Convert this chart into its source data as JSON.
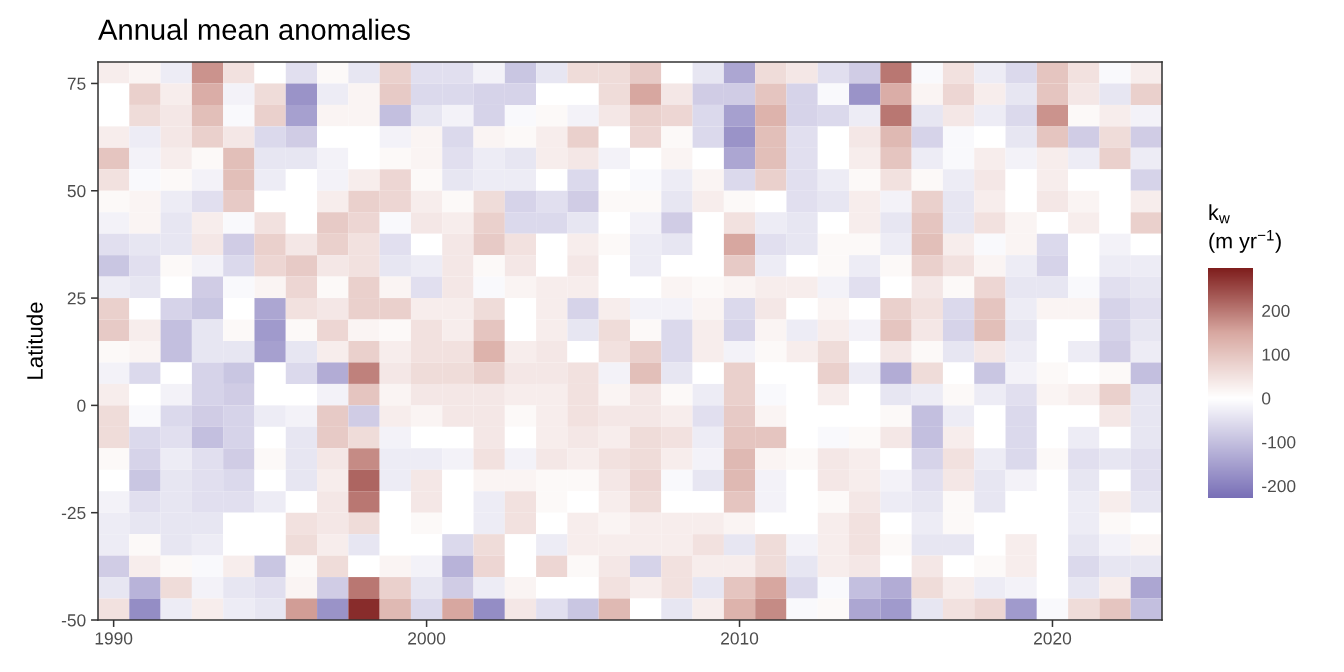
{
  "chart_data": {
    "type": "heatmap",
    "title": "Annual mean anomalies",
    "ylabel": "Latitude",
    "clabel": "k$_{w}$\n(m yr$^{−1}$)",
    "x": [
      1990,
      1991,
      1992,
      1993,
      1994,
      1995,
      1996,
      1997,
      1998,
      1999,
      2000,
      2001,
      2002,
      2003,
      2004,
      2005,
      2006,
      2007,
      2008,
      2009,
      2010,
      2011,
      2012,
      2013,
      2014,
      2015,
      2016,
      2017,
      2018,
      2019,
      2020,
      2021,
      2022,
      2023
    ],
    "cells": [
      [
        30,
        20,
        -30,
        170,
        50,
        0,
        -50,
        10,
        -40,
        80,
        -50,
        -50,
        -20,
        -90,
        -40,
        60,
        60,
        90,
        0,
        -40,
        -140,
        60,
        40,
        -50,
        -80,
        200,
        -10,
        50,
        -30,
        -60,
        100,
        50,
        -10,
        30
      ],
      [
        0,
        80,
        30,
        140,
        -20,
        60,
        -170,
        -30,
        20,
        90,
        -60,
        -60,
        -70,
        -70,
        0,
        0,
        60,
        150,
        40,
        -80,
        -80,
        100,
        -70,
        -10,
        -170,
        140,
        20,
        70,
        30,
        -40,
        100,
        40,
        -40,
        80
      ],
      [
        0,
        60,
        40,
        110,
        -10,
        80,
        -150,
        20,
        20,
        -100,
        -40,
        -20,
        -70,
        -10,
        10,
        -20,
        40,
        80,
        70,
        -60,
        -150,
        130,
        -70,
        -60,
        -30,
        200,
        -40,
        40,
        -30,
        -60,
        170,
        10,
        30,
        -20
      ],
      [
        30,
        -30,
        40,
        80,
        40,
        -60,
        -80,
        0,
        0,
        -20,
        20,
        -60,
        20,
        10,
        30,
        80,
        0,
        70,
        10,
        -60,
        -170,
        110,
        -50,
        0,
        40,
        120,
        -70,
        -10,
        0,
        -40,
        100,
        -80,
        60,
        -80
      ],
      [
        100,
        -20,
        30,
        10,
        110,
        -40,
        -40,
        -20,
        0,
        10,
        20,
        -50,
        -30,
        -40,
        30,
        40,
        -20,
        0,
        20,
        0,
        -140,
        110,
        -50,
        0,
        30,
        100,
        -30,
        -10,
        30,
        -20,
        30,
        -30,
        80,
        -30
      ],
      [
        50,
        -10,
        10,
        -20,
        110,
        -30,
        0,
        -20,
        30,
        70,
        10,
        -40,
        -30,
        -30,
        0,
        -60,
        0,
        -10,
        -30,
        20,
        -60,
        80,
        -50,
        -30,
        10,
        50,
        10,
        -30,
        40,
        0,
        30,
        0,
        0,
        -70
      ],
      [
        10,
        20,
        -30,
        -50,
        90,
        0,
        0,
        30,
        80,
        70,
        30,
        10,
        60,
        -70,
        -50,
        -80,
        10,
        10,
        -40,
        30,
        10,
        0,
        -50,
        -40,
        30,
        -20,
        80,
        -40,
        30,
        0,
        40,
        20,
        0,
        30
      ],
      [
        -20,
        20,
        -40,
        30,
        -10,
        50,
        0,
        90,
        70,
        -10,
        40,
        30,
        80,
        -60,
        -60,
        -40,
        0,
        -20,
        -80,
        0,
        50,
        -30,
        -40,
        0,
        30,
        -40,
        100,
        -40,
        50,
        20,
        0,
        30,
        0,
        80
      ],
      [
        -50,
        -40,
        -40,
        40,
        -80,
        80,
        40,
        80,
        50,
        -50,
        0,
        40,
        90,
        50,
        0,
        30,
        10,
        -30,
        -40,
        0,
        150,
        -50,
        -40,
        10,
        10,
        -30,
        110,
        30,
        -10,
        20,
        -60,
        0,
        -20,
        0
      ],
      [
        -90,
        -50,
        10,
        -20,
        -60,
        70,
        90,
        40,
        50,
        -40,
        -30,
        40,
        10,
        40,
        0,
        40,
        0,
        -30,
        0,
        0,
        90,
        -30,
        0,
        10,
        -30,
        10,
        80,
        50,
        20,
        -30,
        -70,
        0,
        -30,
        -30
      ],
      [
        -30,
        -40,
        0,
        -80,
        -10,
        20,
        70,
        10,
        80,
        20,
        -50,
        40,
        -10,
        20,
        30,
        30,
        0,
        0,
        20,
        10,
        20,
        30,
        30,
        -20,
        -50,
        0,
        40,
        10,
        70,
        -40,
        -40,
        -10,
        -50,
        -40
      ],
      [
        80,
        0,
        -70,
        -90,
        0,
        -140,
        50,
        40,
        80,
        80,
        30,
        30,
        60,
        0,
        30,
        -70,
        30,
        -20,
        -20,
        20,
        -60,
        40,
        0,
        20,
        0,
        80,
        50,
        -60,
        100,
        -30,
        20,
        20,
        -70,
        -50
      ],
      [
        90,
        30,
        -100,
        -40,
        10,
        -160,
        10,
        70,
        20,
        10,
        50,
        30,
        100,
        0,
        30,
        -40,
        60,
        10,
        -60,
        30,
        -70,
        20,
        -30,
        30,
        -20,
        100,
        40,
        -70,
        110,
        -40,
        0,
        0,
        -70,
        -40
      ],
      [
        10,
        20,
        -100,
        -40,
        -40,
        -150,
        -40,
        30,
        80,
        30,
        50,
        50,
        130,
        30,
        40,
        0,
        50,
        80,
        -60,
        30,
        -20,
        10,
        30,
        60,
        0,
        40,
        10,
        -40,
        40,
        -30,
        0,
        -30,
        -80,
        -30
      ],
      [
        -20,
        -60,
        0,
        -70,
        -90,
        0,
        -60,
        -130,
        190,
        40,
        60,
        60,
        80,
        40,
        40,
        50,
        -20,
        110,
        -40,
        0,
        80,
        0,
        0,
        80,
        -30,
        -130,
        60,
        0,
        -90,
        -20,
        10,
        0,
        10,
        -100
      ],
      [
        30,
        0,
        -20,
        -70,
        -80,
        0,
        0,
        -20,
        100,
        20,
        40,
        40,
        40,
        30,
        30,
        50,
        20,
        40,
        10,
        -30,
        80,
        -10,
        0,
        30,
        0,
        -40,
        -30,
        10,
        -30,
        -50,
        20,
        30,
        80,
        -40
      ],
      [
        60,
        -10,
        -60,
        -80,
        -70,
        -30,
        -20,
        90,
        -80,
        30,
        20,
        40,
        40,
        10,
        30,
        50,
        40,
        40,
        30,
        -50,
        90,
        20,
        0,
        0,
        0,
        10,
        -100,
        -30,
        0,
        -60,
        0,
        0,
        40,
        -40
      ],
      [
        60,
        -60,
        -50,
        -100,
        -70,
        0,
        -40,
        90,
        60,
        -20,
        0,
        0,
        40,
        0,
        30,
        40,
        30,
        60,
        50,
        -30,
        100,
        100,
        0,
        -10,
        10,
        40,
        -100,
        30,
        0,
        -60,
        0,
        -30,
        0,
        -40
      ],
      [
        10,
        -70,
        -30,
        -50,
        -80,
        10,
        -40,
        40,
        180,
        -30,
        -30,
        -20,
        50,
        -20,
        40,
        30,
        50,
        60,
        30,
        -20,
        120,
        20,
        10,
        40,
        30,
        0,
        -70,
        50,
        -30,
        -60,
        10,
        -50,
        -40,
        -50
      ],
      [
        0,
        -90,
        -40,
        -50,
        -60,
        0,
        -40,
        30,
        220,
        -30,
        40,
        0,
        20,
        20,
        10,
        10,
        40,
        70,
        -10,
        -40,
        120,
        -20,
        0,
        40,
        30,
        -20,
        -50,
        40,
        -40,
        -20,
        0,
        -40,
        0,
        -50
      ],
      [
        -20,
        -50,
        -40,
        -50,
        -50,
        -30,
        0,
        40,
        200,
        0,
        40,
        0,
        -30,
        50,
        10,
        0,
        30,
        60,
        0,
        0,
        100,
        -20,
        0,
        10,
        40,
        -30,
        -40,
        10,
        -40,
        0,
        0,
        -30,
        30,
        -40
      ],
      [
        -30,
        -40,
        -40,
        -40,
        0,
        0,
        50,
        40,
        60,
        0,
        10,
        0,
        -30,
        50,
        0,
        30,
        20,
        30,
        30,
        30,
        20,
        0,
        0,
        30,
        50,
        0,
        -30,
        10,
        0,
        0,
        0,
        -30,
        10,
        0
      ],
      [
        -30,
        10,
        -40,
        -30,
        0,
        0,
        60,
        30,
        -40,
        0,
        0,
        -60,
        60,
        0,
        -30,
        30,
        30,
        30,
        30,
        50,
        -40,
        60,
        -20,
        30,
        50,
        10,
        -40,
        -40,
        0,
        30,
        0,
        -40,
        -20,
        20
      ],
      [
        -80,
        30,
        10,
        -10,
        30,
        -90,
        10,
        60,
        0,
        20,
        -20,
        -120,
        70,
        0,
        70,
        10,
        40,
        -70,
        50,
        30,
        30,
        60,
        -40,
        30,
        40,
        0,
        40,
        0,
        10,
        30,
        0,
        -60,
        -40,
        -40
      ],
      [
        -40,
        -120,
        60,
        -20,
        -40,
        -50,
        20,
        -80,
        200,
        80,
        -40,
        -80,
        -30,
        20,
        0,
        0,
        50,
        30,
        50,
        -40,
        100,
        150,
        -60,
        -10,
        -100,
        -130,
        60,
        30,
        -30,
        -20,
        0,
        -40,
        30,
        -140
      ],
      [
        50,
        -180,
        -30,
        30,
        -30,
        -40,
        160,
        -170,
        280,
        120,
        -60,
        150,
        -180,
        40,
        -50,
        -90,
        120,
        0,
        -40,
        30,
        130,
        180,
        -10,
        10,
        -140,
        -160,
        -40,
        50,
        70,
        -160,
        -10,
        60,
        100,
        -100
      ]
    ],
    "xlim": [
      1989.5,
      2023.5
    ],
    "ylim": [
      -50,
      80
    ],
    "xticks": [
      1990,
      2000,
      2010,
      2020
    ],
    "yticks": [
      -50,
      -25,
      0,
      25,
      50,
      75
    ],
    "clim": [
      -228,
      297
    ],
    "cticks": [
      -200,
      -100,
      0,
      100,
      200
    ]
  }
}
